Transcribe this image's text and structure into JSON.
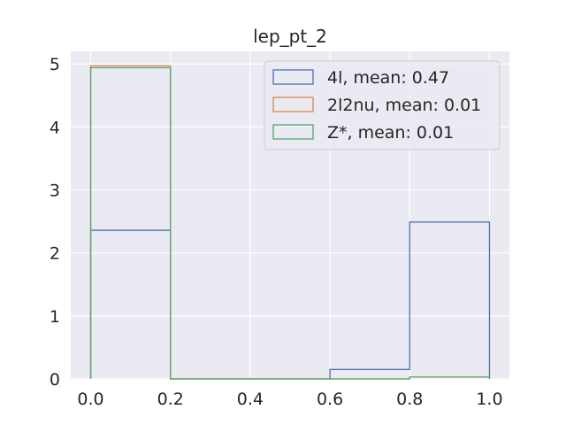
{
  "chart_data": {
    "type": "histogram",
    "title": "lep_pt_2",
    "xlabel": "",
    "ylabel": "",
    "xlim": [
      -0.05,
      1.05
    ],
    "ylim": [
      0,
      5.2
    ],
    "x_ticks": [
      "0.0",
      "0.2",
      "0.4",
      "0.6",
      "0.8",
      "1.0"
    ],
    "x_tick_values": [
      0.0,
      0.2,
      0.4,
      0.6,
      0.8,
      1.0
    ],
    "y_ticks": [
      "0",
      "1",
      "2",
      "3",
      "4",
      "5"
    ],
    "y_tick_values": [
      0,
      1,
      2,
      3,
      4,
      5
    ],
    "bin_edges": [
      0.0,
      0.2,
      0.4,
      0.6,
      0.8,
      1.0
    ],
    "grid": true,
    "legend_position": "top-right",
    "series": [
      {
        "name": "4l, mean: 0.47",
        "color": "#4c72b0",
        "values": [
          2.36,
          0.0,
          0.0,
          0.15,
          2.49
        ]
      },
      {
        "name": "2l2nu, mean: 0.01",
        "color": "#dd8452",
        "values": [
          4.97,
          0.0,
          0.0,
          0.0,
          0.03
        ]
      },
      {
        "name": "Z*, mean: 0.01",
        "color": "#55a868",
        "values": [
          4.94,
          0.0,
          0.0,
          0.0,
          0.03
        ]
      }
    ]
  }
}
